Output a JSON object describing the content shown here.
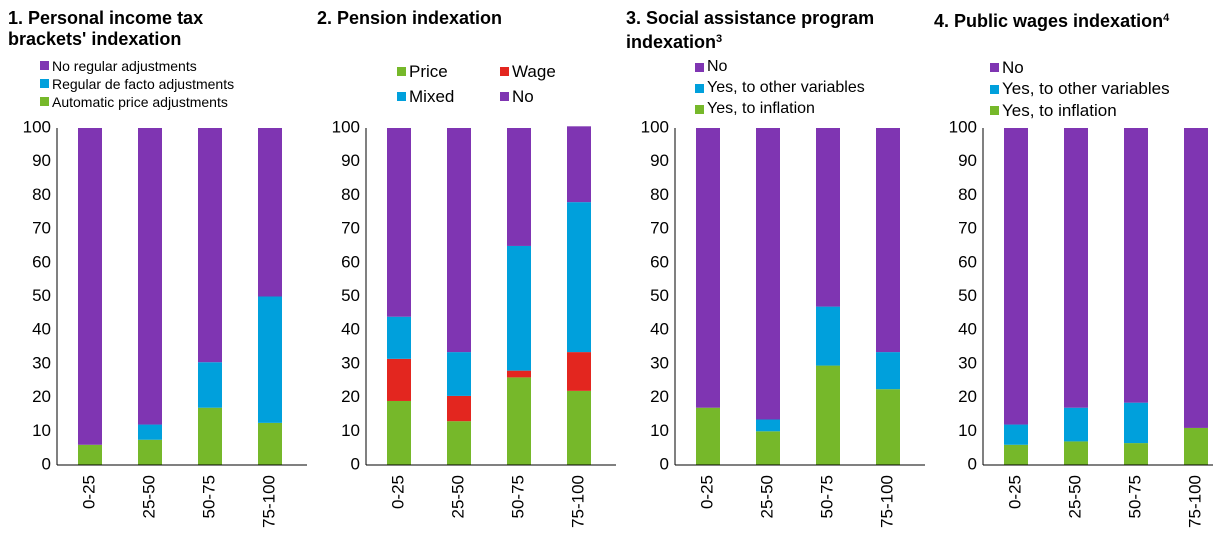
{
  "chart_data": [
    {
      "type": "bar",
      "stacked": true,
      "title": "1. Personal income tax brackets' indexation",
      "categories": [
        "0-25",
        "25-50",
        "50-75",
        "75-100"
      ],
      "ylim": [
        0,
        100
      ],
      "yticks": [
        0,
        10,
        20,
        30,
        40,
        50,
        60,
        70,
        80,
        90,
        100
      ],
      "series": [
        {
          "name": "Automatic price adjustments",
          "color": "#76b82a",
          "values": [
            6,
            7.5,
            17,
            12.5
          ]
        },
        {
          "name": "Regular de facto adjustments",
          "color": "#00a0dc",
          "values": [
            0,
            4.5,
            13.5,
            37.5
          ]
        },
        {
          "name": "No regular adjustments",
          "color": "#7f35b2",
          "values": [
            94,
            88,
            69.5,
            50
          ]
        }
      ]
    },
    {
      "type": "bar",
      "stacked": true,
      "title": "2. Pension indexation",
      "categories": [
        "0-25",
        "25-50",
        "50-75",
        "75-100"
      ],
      "ylim": [
        0,
        100
      ],
      "yticks": [
        0,
        10,
        20,
        30,
        40,
        50,
        60,
        70,
        80,
        90,
        100
      ],
      "series": [
        {
          "name": "Price",
          "color": "#76b82a",
          "values": [
            19,
            13,
            26,
            22
          ]
        },
        {
          "name": "Wage",
          "color": "#e3261f",
          "values": [
            12.5,
            7.5,
            2,
            11.5
          ]
        },
        {
          "name": "Mixed",
          "color": "#00a0dc",
          "values": [
            12.5,
            13,
            37,
            44.5
          ]
        },
        {
          "name": "No",
          "color": "#7f35b2",
          "values": [
            56,
            66.5,
            35,
            22.5
          ]
        }
      ]
    },
    {
      "type": "bar",
      "stacked": true,
      "title": "3. Social assistance program indexation",
      "title_note": "3",
      "categories": [
        "0-25",
        "25-50",
        "50-75",
        "75-100"
      ],
      "ylim": [
        0,
        100
      ],
      "yticks": [
        0,
        10,
        20,
        30,
        40,
        50,
        60,
        70,
        80,
        90,
        100
      ],
      "series": [
        {
          "name": "Yes, to inflation",
          "color": "#76b82a",
          "values": [
            17,
            10,
            29.5,
            22.5
          ]
        },
        {
          "name": "Yes, to other variables",
          "color": "#00a0dc",
          "values": [
            0,
            3.5,
            17.5,
            11
          ]
        },
        {
          "name": "No",
          "color": "#7f35b2",
          "values": [
            83,
            86.5,
            53,
            66.5
          ]
        }
      ]
    },
    {
      "type": "bar",
      "stacked": true,
      "title": "4. Public wages indexation",
      "title_note": "4",
      "categories": [
        "0-25",
        "25-50",
        "50-75",
        "75-100"
      ],
      "ylim": [
        0,
        100
      ],
      "yticks": [
        0,
        10,
        20,
        30,
        40,
        50,
        60,
        70,
        80,
        90,
        100
      ],
      "series": [
        {
          "name": "Yes, to inflation",
          "color": "#76b82a",
          "values": [
            6,
            7,
            6.5,
            11
          ]
        },
        {
          "name": "Yes, to other variables",
          "color": "#00a0dc",
          "values": [
            6,
            10,
            12,
            0
          ]
        },
        {
          "name": "No",
          "color": "#7f35b2",
          "values": [
            88,
            83,
            81.5,
            89
          ]
        }
      ]
    }
  ]
}
